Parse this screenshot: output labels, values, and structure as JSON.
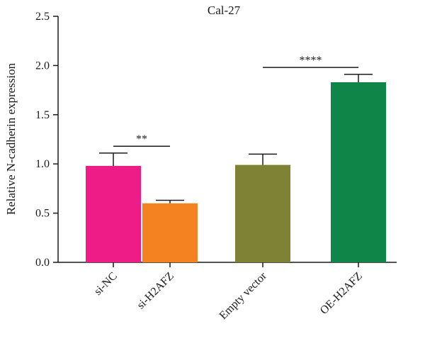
{
  "chart_data": {
    "type": "bar",
    "title": "Cal-27",
    "xlabel": "",
    "ylabel": "Relative N-cadherin expression",
    "ylim": [
      0,
      2.5
    ],
    "yticks": [
      "0.0",
      "0.5",
      "1.0",
      "1.5",
      "2.0",
      "2.5"
    ],
    "categories": [
      "si-NC",
      "si-H2AFZ",
      "Empty vector",
      "OE-H2AFZ"
    ],
    "values": [
      0.98,
      0.6,
      0.99,
      1.83
    ],
    "errors": [
      0.13,
      0.03,
      0.11,
      0.08
    ],
    "colors": [
      "#ED1C87",
      "#F58220",
      "#7F8134",
      "#0F8547"
    ],
    "significance": [
      {
        "from": 0,
        "to": 1,
        "y": 1.18,
        "label": "**"
      },
      {
        "from": 2,
        "to": 3,
        "y": 1.98,
        "label": "****"
      }
    ],
    "grid": false,
    "legend": "none"
  }
}
